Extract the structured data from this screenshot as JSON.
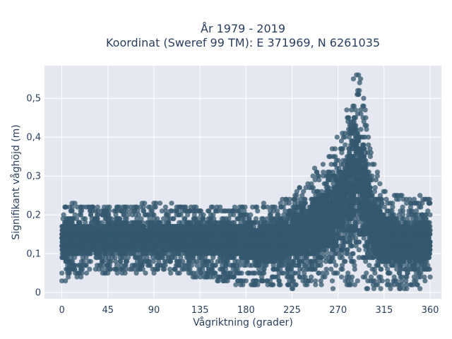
{
  "chart_data": {
    "type": "scatter",
    "title_line1": "År 1979 - 2019",
    "title_line2": "Koordinat (Sweref 99 TM): E 371969, N 6261035",
    "xlabel": "Vågriktning (grader)",
    "ylabel": "Signifikant våghöjd (m)",
    "xlim": [
      -17,
      371
    ],
    "ylim": [
      -0.016,
      0.584
    ],
    "x_ticks": [
      0,
      45,
      90,
      135,
      180,
      225,
      270,
      315,
      360
    ],
    "x_tick_labels": [
      "0",
      "45",
      "90",
      "135",
      "180",
      "225",
      "270",
      "315",
      "360"
    ],
    "y_ticks": [
      0,
      0.1,
      0.2,
      0.3,
      0.4,
      0.5
    ],
    "y_tick_labels": [
      "0",
      "0,1",
      "0,2",
      "0,3",
      "0,4",
      "0,5"
    ],
    "grid": true,
    "colors": {
      "marker": "#34586f",
      "plot_background": "#e5e8f0",
      "grid": "#ffffff",
      "text": "#2a3f5f"
    },
    "series": [
      {
        "marker_opacity": 0.75,
        "density_envelope": {
          "x": [
            0,
            20,
            45,
            90,
            135,
            165,
            180,
            200,
            225,
            245,
            260,
            270,
            275,
            280,
            285,
            288,
            290,
            292,
            295,
            300,
            305,
            315,
            330,
            345,
            360
          ],
          "y_min": [
            0.03,
            0.04,
            0.05,
            0.05,
            0.04,
            0.02,
            0.02,
            0.02,
            0.01,
            0.01,
            0.01,
            0.01,
            0.01,
            0.01,
            0.01,
            0.01,
            0.01,
            0.01,
            0.01,
            0.01,
            0.01,
            0.01,
            0.01,
            0.01,
            0.04
          ],
          "y_max": [
            0.23,
            0.23,
            0.22,
            0.23,
            0.22,
            0.22,
            0.22,
            0.23,
            0.26,
            0.32,
            0.36,
            0.4,
            0.44,
            0.5,
            0.55,
            0.56,
            0.56,
            0.55,
            0.5,
            0.4,
            0.33,
            0.27,
            0.25,
            0.25,
            0.24
          ],
          "core_min": [
            0.07,
            0.08,
            0.09,
            0.09,
            0.09,
            0.08,
            0.07,
            0.06,
            0.05,
            0.05,
            0.05,
            0.05,
            0.05,
            0.05,
            0.05,
            0.05,
            0.05,
            0.05,
            0.05,
            0.05,
            0.05,
            0.05,
            0.05,
            0.05,
            0.06
          ],
          "core_max": [
            0.2,
            0.19,
            0.19,
            0.19,
            0.19,
            0.19,
            0.19,
            0.2,
            0.23,
            0.28,
            0.33,
            0.38,
            0.43,
            0.49,
            0.54,
            0.55,
            0.55,
            0.53,
            0.47,
            0.36,
            0.28,
            0.23,
            0.21,
            0.21,
            0.2
          ]
        },
        "sample_points": [
          [
            0,
            0.03
          ],
          [
            0,
            0.05
          ],
          [
            20,
            0.06
          ],
          [
            45,
            0.05
          ],
          [
            90,
            0.05
          ],
          [
            100,
            0.06
          ],
          [
            130,
            0.04
          ],
          [
            150,
            0.05
          ],
          [
            160,
            0.03
          ],
          [
            170,
            0.02
          ],
          [
            175,
            0.03
          ],
          [
            185,
            0.02
          ],
          [
            200,
            0.03
          ],
          [
            225,
            0.01
          ],
          [
            265,
            0.01
          ],
          [
            305,
            0.01
          ],
          [
            330,
            0.01
          ],
          [
            350,
            0.01
          ],
          [
            355,
            0.03
          ],
          [
            360,
            0.04
          ],
          [
            290,
            0.56
          ],
          [
            288,
            0.56
          ],
          [
            292,
            0.55
          ],
          [
            285,
            0.55
          ],
          [
            295,
            0.5
          ],
          [
            250,
            0.3
          ],
          [
            340,
            0.24
          ],
          [
            350,
            0.25
          ],
          [
            355,
            0.24
          ],
          [
            10,
            0.23
          ],
          [
            90,
            0.23
          ]
        ]
      }
    ]
  }
}
